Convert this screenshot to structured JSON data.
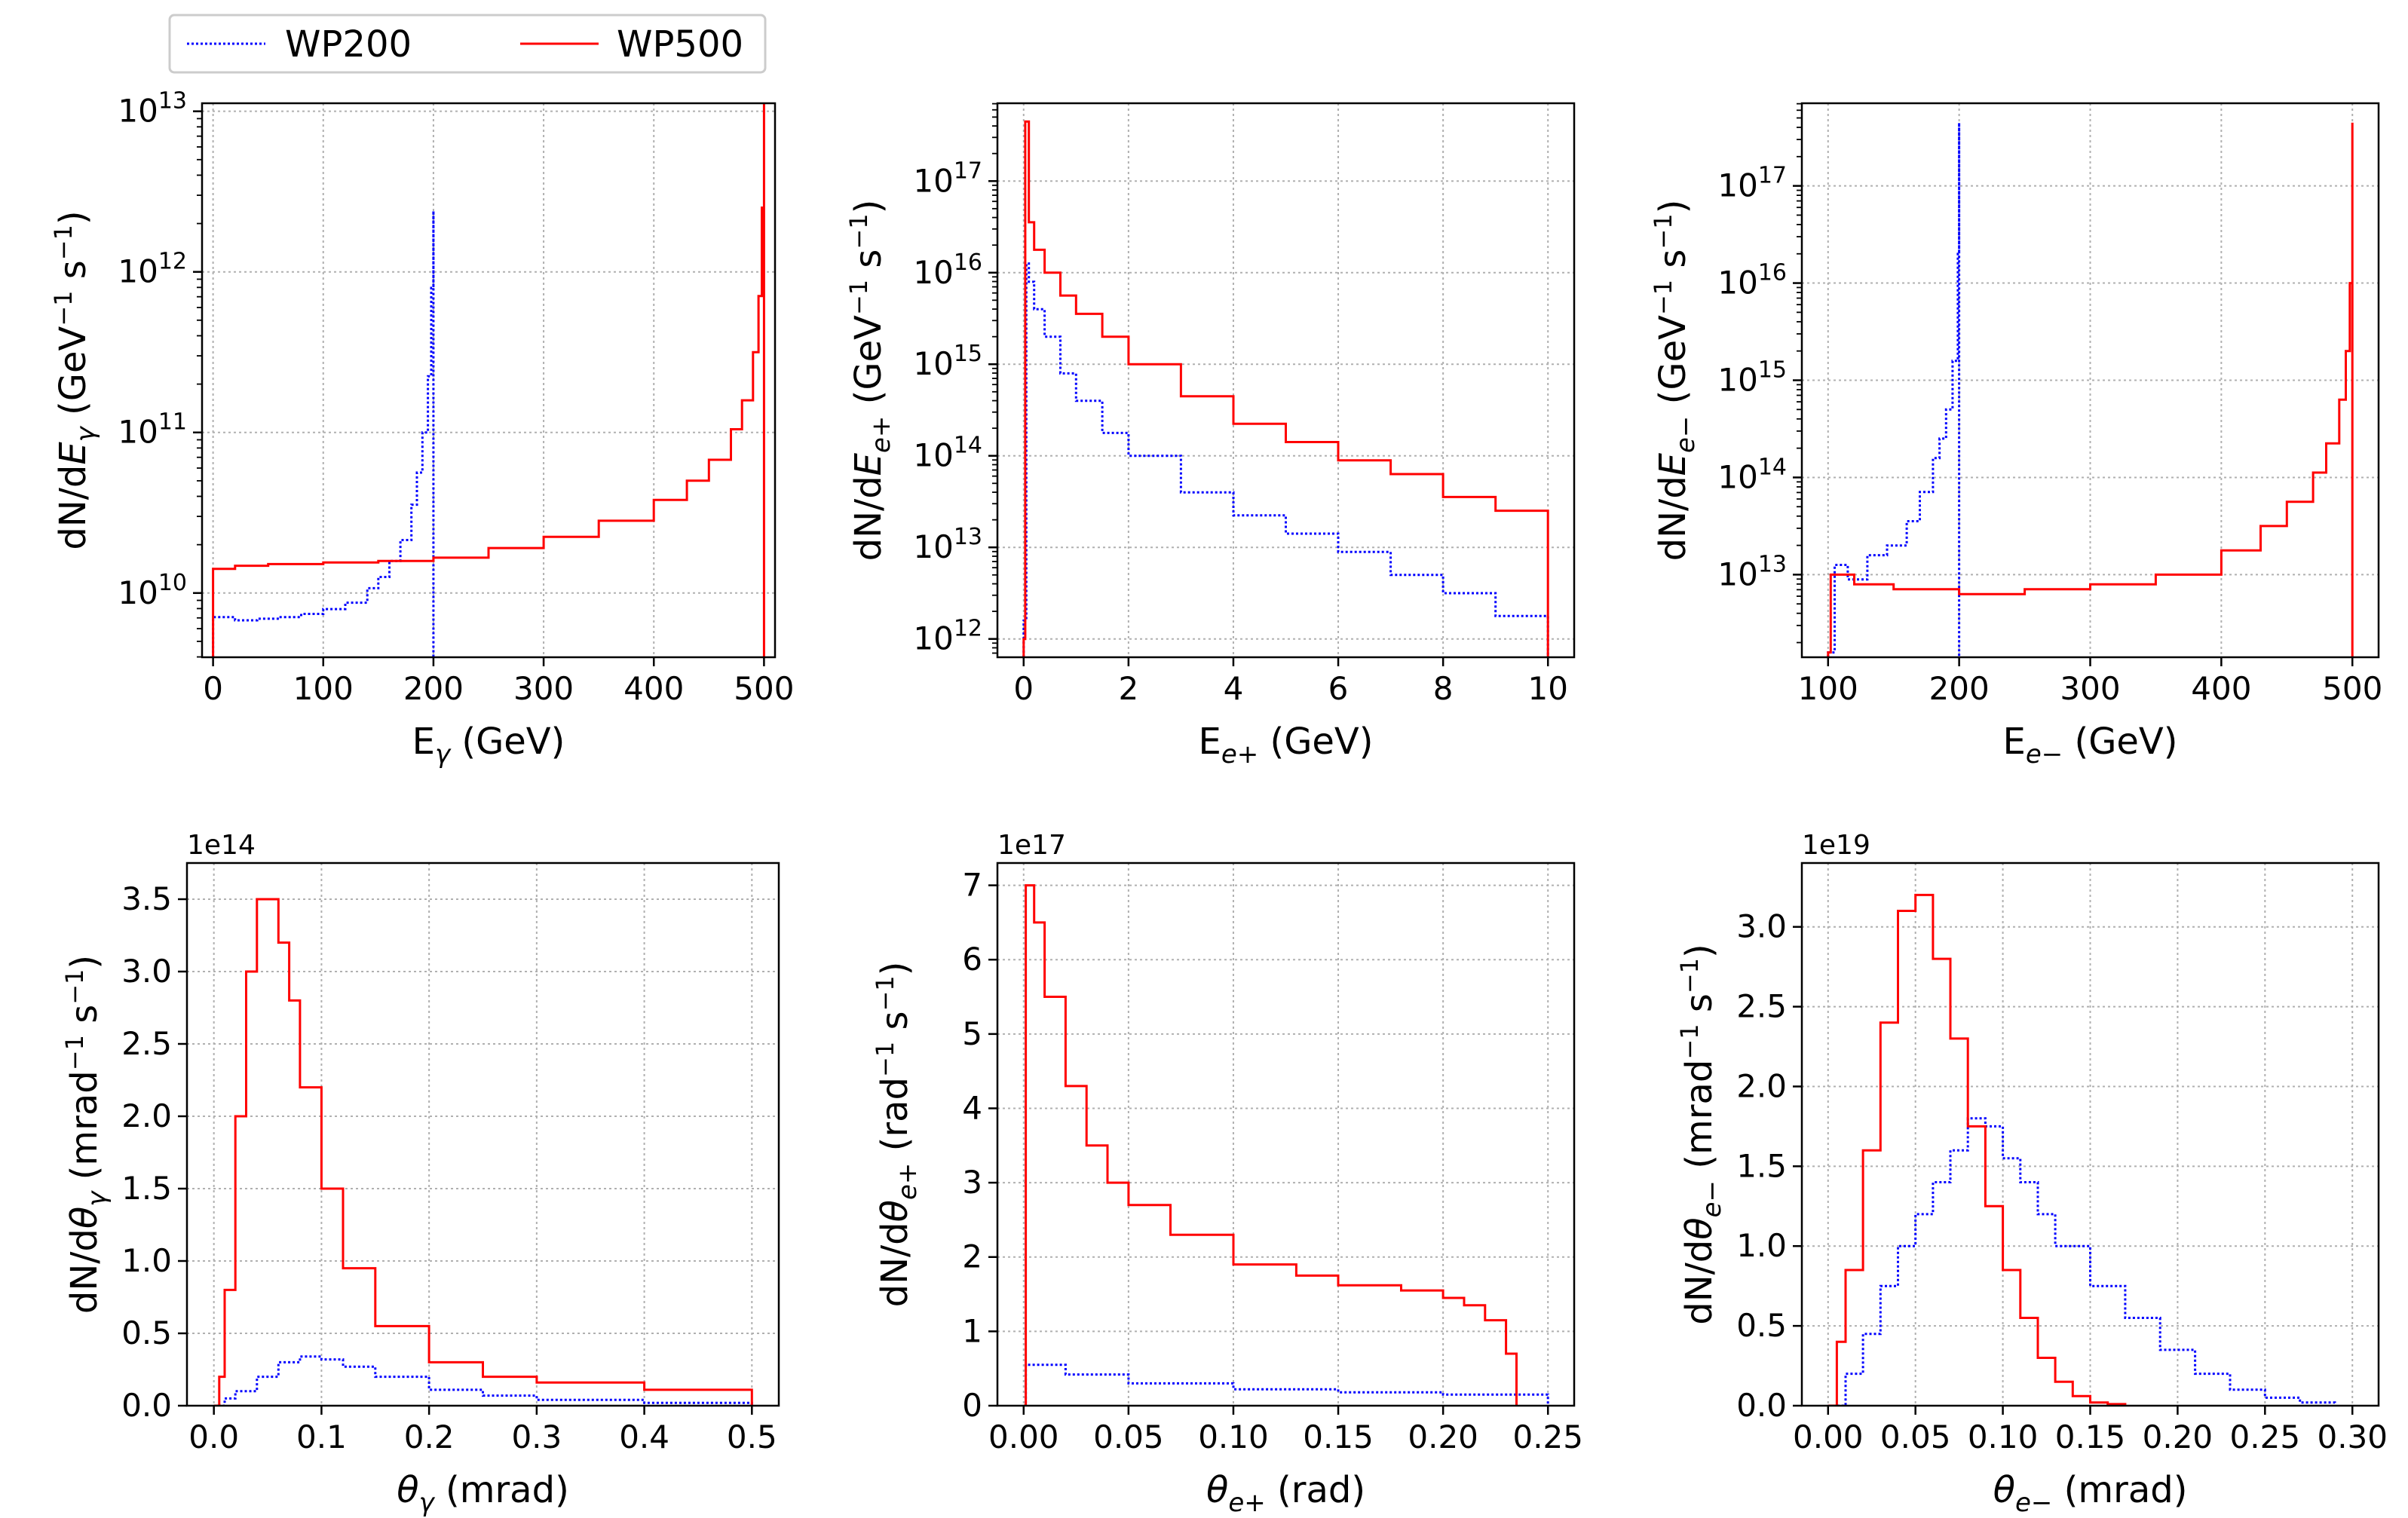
{
  "legend": {
    "entries": [
      {
        "label": "WP200",
        "color": "#0000ff",
        "style": "dotted"
      },
      {
        "label": "WP500",
        "color": "#ff0000",
        "style": "solid"
      }
    ]
  },
  "colors": {
    "WP200": "#0000ff",
    "WP500": "#ff0000",
    "grid": "#b0b0b0"
  },
  "chart_data": [
    {
      "id": "p1",
      "type": "line",
      "scale": "log",
      "xlabel_main": "E",
      "xlabel_sub": "γ",
      "xlabel_tail": " (GeV)",
      "ylabel_text": "dN/dE_γ (GeV^-1 s^-1)",
      "xlim": [
        -10,
        510
      ],
      "ylog": [
        9.6,
        13.05
      ],
      "xticks": [
        0,
        100,
        200,
        300,
        400,
        500
      ],
      "xtick_labels": [
        "0",
        "100",
        "200",
        "300",
        "400",
        "500"
      ],
      "yticks": [
        10,
        11,
        12,
        13
      ],
      "series": [
        {
          "name": "WP200",
          "x": [
            0,
            20,
            40,
            60,
            80,
            100,
            120,
            140,
            150,
            160,
            170,
            180,
            185,
            190,
            195,
            198,
            200
          ],
          "ylog": [
            9.85,
            9.83,
            9.84,
            9.85,
            9.87,
            9.9,
            9.94,
            10.03,
            10.1,
            10.2,
            10.33,
            10.55,
            10.75,
            11.0,
            11.35,
            11.9,
            12.38
          ]
        },
        {
          "name": "WP500",
          "x": [
            0,
            20,
            50,
            100,
            150,
            200,
            250,
            300,
            350,
            400,
            430,
            450,
            470,
            480,
            490,
            495,
            498,
            500
          ],
          "ylog": [
            10.15,
            10.17,
            10.18,
            10.19,
            10.2,
            10.22,
            10.28,
            10.35,
            10.45,
            10.58,
            10.7,
            10.83,
            11.02,
            11.2,
            11.5,
            11.85,
            12.4,
            13.05
          ]
        }
      ]
    },
    {
      "id": "p2",
      "type": "line",
      "scale": "log",
      "xlabel_main": "E",
      "xlabel_sub": "e+",
      "xlabel_tail": " (GeV)",
      "ylabel_text": "dN/dE_e+ (GeV^-1 s^-1)",
      "xlim": [
        -0.5,
        10.5
      ],
      "ylog": [
        11.8,
        17.85
      ],
      "xticks": [
        0,
        2,
        4,
        6,
        8,
        10
      ],
      "xtick_labels": [
        "0",
        "2",
        "4",
        "6",
        "8",
        "10"
      ],
      "yticks": [
        12,
        13,
        14,
        15,
        16,
        17
      ],
      "series": [
        {
          "name": "WP200",
          "x": [
            0,
            0.05,
            0.1,
            0.2,
            0.4,
            0.7,
            1,
            1.5,
            2,
            3,
            4,
            5,
            6,
            7,
            8,
            9,
            10
          ],
          "ylog": [
            12.2,
            16.1,
            15.9,
            15.6,
            15.3,
            14.9,
            14.6,
            14.25,
            14.0,
            13.6,
            13.35,
            13.15,
            12.95,
            12.7,
            12.5,
            12.25,
            12.0
          ]
        },
        {
          "name": "WP500",
          "x": [
            0,
            0.03,
            0.1,
            0.2,
            0.4,
            0.7,
            1,
            1.5,
            2,
            3,
            4,
            5,
            6,
            7,
            8,
            9,
            10
          ],
          "ylog": [
            12.0,
            17.65,
            16.55,
            16.25,
            16.0,
            15.75,
            15.55,
            15.3,
            15.0,
            14.65,
            14.35,
            14.15,
            13.95,
            13.8,
            13.55,
            13.4,
            13.3
          ]
        }
      ]
    },
    {
      "id": "p3",
      "type": "line",
      "scale": "log",
      "xlabel_main": "E",
      "xlabel_sub": "e−",
      "xlabel_tail": " (GeV)",
      "ylabel_text": "dN/dE_e− (GeV^-1 s^-1)",
      "xlim": [
        80,
        520
      ],
      "ylog": [
        12.15,
        17.85
      ],
      "xticks": [
        100,
        200,
        300,
        400,
        500
      ],
      "xtick_labels": [
        "100",
        "200",
        "300",
        "400",
        "500"
      ],
      "yticks": [
        13,
        14,
        15,
        16,
        17
      ],
      "series": [
        {
          "name": "WP200",
          "x": [
            100,
            105,
            115,
            130,
            145,
            160,
            170,
            180,
            185,
            190,
            195,
            199,
            200
          ],
          "ylog": [
            12.2,
            13.1,
            12.95,
            13.2,
            13.3,
            13.55,
            13.85,
            14.2,
            14.4,
            14.7,
            15.2,
            16.3,
            17.65
          ]
        },
        {
          "name": "WP500",
          "x": [
            100,
            102,
            120,
            150,
            200,
            250,
            300,
            350,
            400,
            430,
            450,
            470,
            480,
            490,
            495,
            498,
            500
          ],
          "ylog": [
            12.2,
            13.0,
            12.9,
            12.85,
            12.8,
            12.85,
            12.9,
            13.0,
            13.25,
            13.5,
            13.75,
            14.05,
            14.35,
            14.8,
            15.3,
            16.0,
            17.65
          ]
        }
      ]
    },
    {
      "id": "p4",
      "type": "line",
      "scale": "linear",
      "xlabel_main": "θ",
      "xlabel_sub": "γ",
      "xlabel_tail": " (mrad)",
      "ylabel_text": "dN/dθ_γ (mrad^-1 s^-1)",
      "offset_text": "1e14",
      "xlim": [
        -0.025,
        0.525
      ],
      "ylim": [
        0,
        3.75
      ],
      "xticks": [
        0,
        0.1,
        0.2,
        0.3,
        0.4,
        0.5
      ],
      "xtick_labels": [
        "0.0",
        "0.1",
        "0.2",
        "0.3",
        "0.4",
        "0.5"
      ],
      "yticks": [
        0,
        0.5,
        1,
        1.5,
        2,
        2.5,
        3,
        3.5
      ],
      "ytick_labels": [
        "0.0",
        "0.5",
        "1.0",
        "1.5",
        "2.0",
        "2.5",
        "3.0",
        "3.5"
      ],
      "series": [
        {
          "name": "WP200",
          "x": [
            0,
            0.01,
            0.02,
            0.04,
            0.06,
            0.08,
            0.1,
            0.12,
            0.15,
            0.2,
            0.25,
            0.3,
            0.4,
            0.5
          ],
          "y": [
            0,
            0.05,
            0.1,
            0.2,
            0.3,
            0.34,
            0.32,
            0.27,
            0.2,
            0.11,
            0.07,
            0.04,
            0.02,
            0.01
          ]
        },
        {
          "name": "WP500",
          "x": [
            0,
            0.005,
            0.01,
            0.02,
            0.03,
            0.04,
            0.05,
            0.06,
            0.07,
            0.08,
            0.1,
            0.12,
            0.15,
            0.2,
            0.25,
            0.3,
            0.4,
            0.5
          ],
          "y": [
            0,
            0.2,
            0.8,
            2.0,
            3.0,
            3.5,
            3.5,
            3.2,
            2.8,
            2.2,
            1.5,
            0.95,
            0.55,
            0.3,
            0.2,
            0.16,
            0.11,
            0.08
          ]
        }
      ]
    },
    {
      "id": "p5",
      "type": "line",
      "scale": "linear",
      "xlabel_main": "θ",
      "xlabel_sub": "e+",
      "xlabel_tail": " (rad)",
      "ylabel_text": "dN/dθ_e+ (rad^-1 s^-1)",
      "offset_text": "1e17",
      "xlim": [
        -0.0125,
        0.2625
      ],
      "ylim": [
        0,
        7.3
      ],
      "xticks": [
        0,
        0.05,
        0.1,
        0.15,
        0.2,
        0.25
      ],
      "xtick_labels": [
        "0.00",
        "0.05",
        "0.10",
        "0.15",
        "0.20",
        "0.25"
      ],
      "yticks": [
        0,
        1,
        2,
        3,
        4,
        5,
        6,
        7
      ],
      "ytick_labels": [
        "0",
        "1",
        "2",
        "3",
        "4",
        "5",
        "6",
        "7"
      ],
      "series": [
        {
          "name": "WP200",
          "x": [
            0,
            0.001,
            0.02,
            0.05,
            0.1,
            0.15,
            0.2,
            0.25
          ],
          "y": [
            0,
            0.55,
            0.42,
            0.3,
            0.22,
            0.18,
            0.15,
            0.12
          ]
        },
        {
          "name": "WP500",
          "x": [
            0,
            0.001,
            0.005,
            0.01,
            0.02,
            0.03,
            0.04,
            0.05,
            0.07,
            0.1,
            0.13,
            0.15,
            0.18,
            0.2,
            0.21,
            0.22,
            0.23,
            0.235
          ],
          "y": [
            0,
            7.0,
            6.5,
            5.5,
            4.3,
            3.5,
            3.0,
            2.7,
            2.3,
            1.9,
            1.75,
            1.62,
            1.55,
            1.45,
            1.35,
            1.15,
            0.7,
            0
          ]
        }
      ]
    },
    {
      "id": "p6",
      "type": "line",
      "scale": "linear",
      "xlabel_main": "θ",
      "xlabel_sub": "e−",
      "xlabel_tail": " (mrad)",
      "ylabel_text": "dN/dθ_e− (mrad^-1 s^-1)",
      "offset_text": "1e19",
      "xlim": [
        -0.015,
        0.315
      ],
      "ylim": [
        0,
        3.4
      ],
      "xticks": [
        0,
        0.05,
        0.1,
        0.15,
        0.2,
        0.25,
        0.3
      ],
      "xtick_labels": [
        "0.00",
        "0.05",
        "0.10",
        "0.15",
        "0.20",
        "0.25",
        "0.30"
      ],
      "yticks": [
        0,
        0.5,
        1,
        1.5,
        2,
        2.5,
        3
      ],
      "ytick_labels": [
        "0.0",
        "0.5",
        "1.0",
        "1.5",
        "2.0",
        "2.5",
        "3.0"
      ],
      "series": [
        {
          "name": "WP200",
          "x": [
            0,
            0.01,
            0.02,
            0.03,
            0.04,
            0.05,
            0.06,
            0.07,
            0.08,
            0.09,
            0.1,
            0.11,
            0.12,
            0.13,
            0.15,
            0.17,
            0.19,
            0.21,
            0.23,
            0.25,
            0.27,
            0.29
          ],
          "y": [
            0,
            0.2,
            0.45,
            0.75,
            1.0,
            1.2,
            1.4,
            1.6,
            1.8,
            1.75,
            1.55,
            1.4,
            1.2,
            1.0,
            0.75,
            0.55,
            0.35,
            0.2,
            0.1,
            0.05,
            0.02,
            0.01
          ]
        },
        {
          "name": "WP500",
          "x": [
            0,
            0.005,
            0.01,
            0.02,
            0.03,
            0.04,
            0.05,
            0.06,
            0.07,
            0.08,
            0.09,
            0.1,
            0.11,
            0.12,
            0.13,
            0.14,
            0.15,
            0.16,
            0.17
          ],
          "y": [
            0,
            0.4,
            0.85,
            1.6,
            2.4,
            3.1,
            3.2,
            2.8,
            2.3,
            1.75,
            1.25,
            0.85,
            0.55,
            0.3,
            0.15,
            0.06,
            0.02,
            0.01,
            0
          ]
        }
      ]
    }
  ]
}
